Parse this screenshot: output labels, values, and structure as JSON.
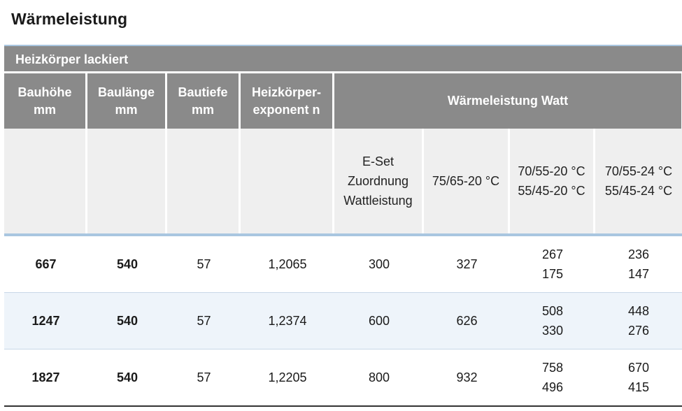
{
  "page_title": "Wärmeleistung",
  "band_label": "Heizkörper lackiert",
  "header": {
    "c0": [
      "Bauhöhe",
      "mm"
    ],
    "c1": [
      "Baulänge",
      "mm"
    ],
    "c2": [
      "Bautiefe",
      "mm"
    ],
    "c3": [
      "Heizkörper-",
      "exponent n"
    ],
    "wide": "Wärmeleistung Watt"
  },
  "subheader": {
    "c4": [
      "E-Set",
      "Zuordnung",
      "Wattleistung"
    ],
    "c5": [
      "75/65-20 °C"
    ],
    "c6": [
      "70/55-20 °C",
      "55/45-20 °C"
    ],
    "c7": [
      "70/55-24 °C",
      "55/45-24 °C"
    ]
  },
  "rows": [
    {
      "height": "667",
      "length": "540",
      "depth": "57",
      "exponent": "1,2065",
      "eset": "300",
      "w75": "327",
      "w70_20": [
        "267",
        "175"
      ],
      "w70_24": [
        "236",
        "147"
      ]
    },
    {
      "height": "1247",
      "length": "540",
      "depth": "57",
      "exponent": "1,2374",
      "eset": "600",
      "w75": "626",
      "w70_20": [
        "508",
        "330"
      ],
      "w70_24": [
        "448",
        "276"
      ]
    },
    {
      "height": "1827",
      "length": "540",
      "depth": "57",
      "exponent": "1,2205",
      "eset": "800",
      "w75": "932",
      "w70_20": [
        "758",
        "496"
      ],
      "w70_24": [
        "670",
        "415"
      ]
    }
  ]
}
